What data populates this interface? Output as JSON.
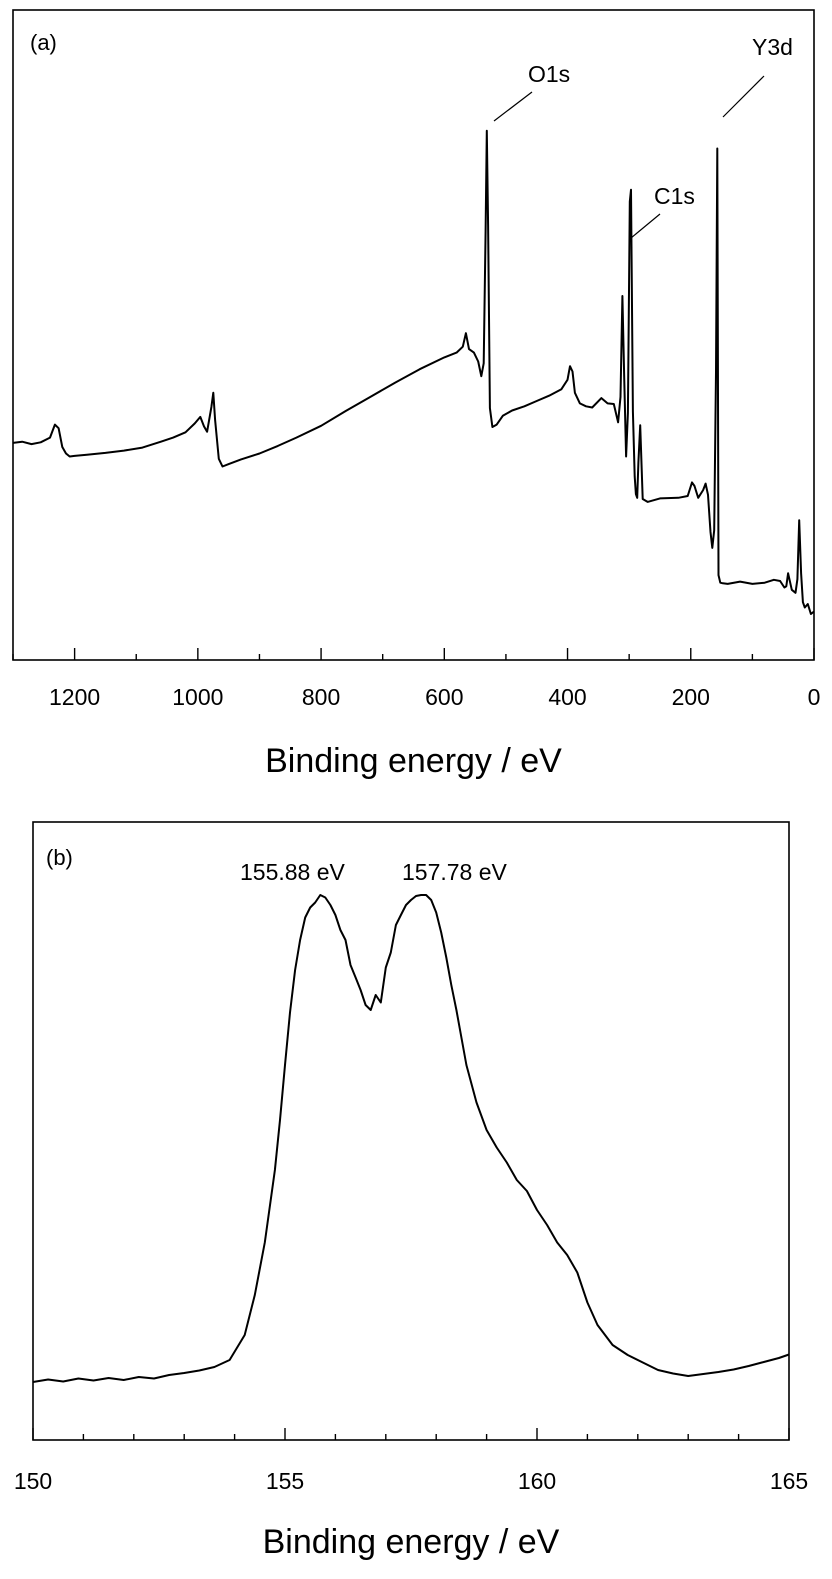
{
  "chart_data": [
    {
      "type": "line",
      "panel_label": "(a)",
      "xlabel": "Binding energy / eV",
      "ylabel": "",
      "xlim": [
        1300,
        0
      ],
      "x_reversed": true,
      "xticks": [
        1200,
        1000,
        800,
        600,
        400,
        200,
        0
      ],
      "xtick_labels": [
        "1200",
        "1000",
        "800",
        "600",
        "400",
        "200",
        "0"
      ],
      "minor_xtick_step": 100,
      "y_ticks_shown": false,
      "grid": false,
      "ylim": [
        0,
        100
      ],
      "annotations": [
        {
          "text": "O1s",
          "x": 531
        },
        {
          "text": "C1s",
          "x": 297
        },
        {
          "text": "Y3d",
          "x": 157
        }
      ],
      "series": [
        {
          "x": [
            1300,
            1285,
            1270,
            1255,
            1240,
            1232,
            1226,
            1220,
            1214,
            1208,
            1200,
            1180,
            1150,
            1120,
            1090,
            1060,
            1040,
            1020,
            1005,
            996,
            990,
            985,
            978,
            975,
            972,
            966,
            960,
            950,
            930,
            900,
            870,
            840,
            800,
            760,
            720,
            680,
            640,
            600,
            580,
            570,
            565,
            560,
            552,
            545,
            540,
            536,
            533,
            531,
            529,
            526,
            522,
            515,
            505,
            490,
            470,
            450,
            430,
            410,
            400,
            396,
            392,
            388,
            380,
            370,
            360,
            345,
            335,
            325,
            318,
            314,
            311,
            308,
            305,
            302,
            299,
            297,
            294,
            291,
            289,
            287,
            285,
            282,
            278,
            270,
            250,
            220,
            205,
            198,
            194,
            188,
            180,
            176,
            172,
            168,
            165,
            162,
            159,
            157,
            155,
            152,
            148,
            140,
            120,
            100,
            80,
            65,
            55,
            48,
            45,
            42,
            36,
            30,
            27,
            24,
            21,
            18,
            15,
            10,
            5,
            0
          ],
          "y": [
            35.1,
            35.3,
            34.9,
            35.2,
            36.0,
            38.2,
            37.6,
            34.4,
            33.3,
            32.8,
            32.9,
            33.1,
            33.4,
            33.8,
            34.3,
            35.3,
            36.0,
            36.9,
            38.4,
            39.5,
            37.9,
            37.0,
            41.2,
            43.6,
            39.0,
            32.4,
            31.1,
            31.5,
            32.3,
            33.3,
            34.6,
            36.0,
            38.0,
            40.5,
            42.9,
            45.3,
            47.6,
            49.6,
            50.4,
            51.4,
            53.7,
            51.0,
            50.4,
            48.9,
            46.4,
            48.6,
            71.0,
            88.0,
            72.0,
            41.0,
            37.8,
            38.2,
            39.7,
            40.6,
            41.3,
            42.2,
            43.1,
            44.2,
            45.8,
            48.1,
            47.2,
            43.6,
            41.8,
            41.3,
            41.1,
            42.7,
            41.8,
            41.7,
            38.6,
            42.9,
            60.0,
            46.2,
            32.8,
            40.2,
            76.0,
            78.0,
            40.4,
            29.4,
            26.4,
            25.8,
            31.8,
            38.1,
            25.6,
            25.1,
            25.7,
            25.8,
            26.1,
            28.4,
            27.8,
            25.8,
            27.1,
            28.2,
            26.3,
            20.0,
            17.3,
            20.3,
            47.1,
            85.0,
            12.7,
            11.4,
            11.3,
            11.2,
            11.6,
            11.2,
            11.4,
            11.9,
            11.7,
            10.6,
            10.8,
            13.0,
            10.2,
            9.7,
            12.0,
            22.0,
            13.0,
            8.1,
            7.2,
            7.8,
            6.1,
            6.5
          ]
        }
      ]
    },
    {
      "type": "line",
      "panel_label": "(b)",
      "xlabel": "Binding energy / eV",
      "ylabel": "",
      "xlim": [
        150,
        165
      ],
      "x_reversed": false,
      "xticks": [
        150,
        155,
        160,
        165
      ],
      "xtick_labels": [
        "150",
        "155",
        "160",
        "165"
      ],
      "minor_xtick_step": 1,
      "y_ticks_shown": false,
      "grid": false,
      "ylim": [
        0,
        100
      ],
      "annotations": [
        {
          "text": "155.88 eV",
          "x": 155.88
        },
        {
          "text": "157.78 eV",
          "x": 157.78
        }
      ],
      "series": [
        {
          "x": [
            150.0,
            150.3,
            150.6,
            150.9,
            151.2,
            151.5,
            151.8,
            152.1,
            152.4,
            152.7,
            153.0,
            153.3,
            153.6,
            153.9,
            154.2,
            154.4,
            154.6,
            154.8,
            154.9,
            155.0,
            155.1,
            155.2,
            155.3,
            155.4,
            155.5,
            155.6,
            155.7,
            155.8,
            155.9,
            156.0,
            156.1,
            156.2,
            156.3,
            156.4,
            156.5,
            156.6,
            156.7,
            156.8,
            156.9,
            157.0,
            157.1,
            157.2,
            157.3,
            157.4,
            157.5,
            157.6,
            157.7,
            157.8,
            157.9,
            158.0,
            158.1,
            158.2,
            158.3,
            158.4,
            158.5,
            158.6,
            158.8,
            159.0,
            159.2,
            159.4,
            159.6,
            159.8,
            160.0,
            160.2,
            160.4,
            160.6,
            160.8,
            161.0,
            161.2,
            161.5,
            161.8,
            162.1,
            162.4,
            162.7,
            163.0,
            163.3,
            163.6,
            163.9,
            164.2,
            164.5,
            164.8,
            165.0
          ],
          "y": [
            2.6,
            3.1,
            2.7,
            3.3,
            2.9,
            3.4,
            3.0,
            3.6,
            3.3,
            4.0,
            4.4,
            4.9,
            5.6,
            7.0,
            12.0,
            20.0,
            30.5,
            45.0,
            55.0,
            66.0,
            76.5,
            85.0,
            91.0,
            95.5,
            97.5,
            98.5,
            100.0,
            99.5,
            98.0,
            96.0,
            93.0,
            91.0,
            86.0,
            83.5,
            81.0,
            78.0,
            77.0,
            80.0,
            78.5,
            85.5,
            88.5,
            94.0,
            96.0,
            98.0,
            99.0,
            99.8,
            100.0,
            100.0,
            99.0,
            96.5,
            92.5,
            87.5,
            82.0,
            77.0,
            71.5,
            66.0,
            58.5,
            53.0,
            49.5,
            46.5,
            43.0,
            40.8,
            37.0,
            34.0,
            30.5,
            28.0,
            24.5,
            18.5,
            14.0,
            10.0,
            8.0,
            6.5,
            5.0,
            4.3,
            3.8,
            4.2,
            4.6,
            5.1,
            5.8,
            6.6,
            7.4,
            8.1
          ]
        }
      ]
    }
  ]
}
